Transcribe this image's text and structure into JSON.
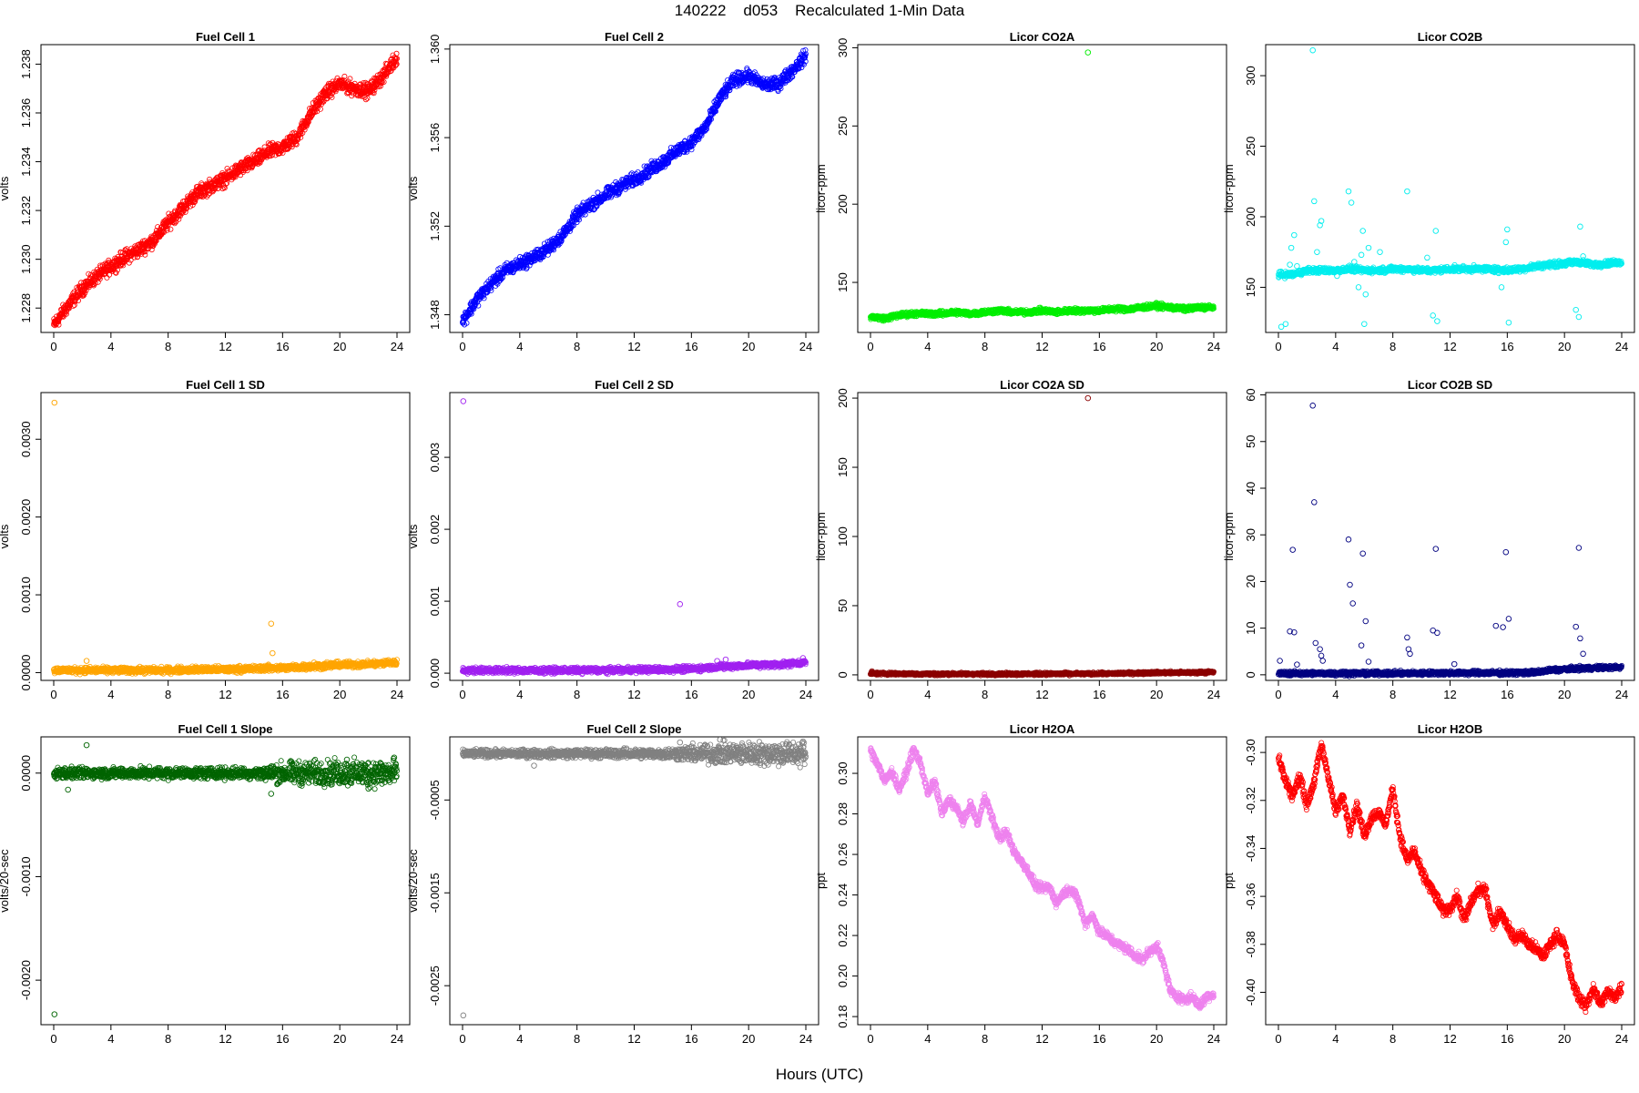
{
  "figure": {
    "title": "140222    d053    Recalculated 1-Min Data",
    "xlabel": "Hours (UTC)"
  },
  "chart_data": [
    {
      "type": "scatter",
      "title": "Fuel Cell 1",
      "ylabel": "volts",
      "color": "#ff0000",
      "xlim": [
        0,
        24
      ],
      "ylim": [
        1.227,
        1.2388
      ],
      "xticks": [
        0,
        4,
        8,
        12,
        16,
        20,
        24
      ],
      "yticks": [
        1.228,
        1.23,
        1.232,
        1.234,
        1.236,
        1.238
      ],
      "ytick_labels": [
        "1.228",
        "1.230",
        "1.232",
        "1.234",
        "1.236",
        "1.238"
      ],
      "x": [
        0,
        1,
        2,
        3,
        4,
        5,
        6,
        7,
        8,
        9,
        10,
        11,
        12,
        13,
        14,
        15,
        16,
        17,
        18,
        19,
        20,
        21,
        22,
        23,
        24
      ],
      "values": [
        1.2273,
        1.2281,
        1.2288,
        1.2293,
        1.2297,
        1.2301,
        1.2304,
        1.2308,
        1.2315,
        1.2321,
        1.2327,
        1.233,
        1.2333,
        1.2337,
        1.234,
        1.2344,
        1.2346,
        1.235,
        1.236,
        1.2368,
        1.2372,
        1.237,
        1.2369,
        1.2375,
        1.2383
      ],
      "band": 0.00022,
      "outliers": []
    },
    {
      "type": "scatter",
      "title": "Fuel Cell 2",
      "ylabel": "volts",
      "color": "#0000ff",
      "xlim": [
        0,
        24
      ],
      "ylim": [
        1.3472,
        1.3602
      ],
      "xticks": [
        0,
        4,
        8,
        12,
        16,
        20,
        24
      ],
      "yticks": [
        1.348,
        1.352,
        1.356,
        1.36
      ],
      "ytick_labels": [
        "1.348",
        "1.352",
        "1.356",
        "1.360"
      ],
      "x": [
        0,
        1,
        2,
        3,
        4,
        5,
        6,
        7,
        8,
        9,
        10,
        11,
        12,
        13,
        14,
        15,
        16,
        17,
        18,
        19,
        20,
        21,
        22,
        23,
        24
      ],
      "values": [
        1.3477,
        1.3487,
        1.3494,
        1.35,
        1.3503,
        1.3506,
        1.351,
        1.3516,
        1.3525,
        1.353,
        1.3534,
        1.3538,
        1.3541,
        1.3545,
        1.3549,
        1.3554,
        1.3558,
        1.3565,
        1.3578,
        1.3586,
        1.3588,
        1.3584,
        1.3584,
        1.359,
        1.3597
      ],
      "band": 0.00022,
      "outliers": []
    },
    {
      "type": "scatter",
      "title": "Licor CO2A",
      "ylabel": "licor-ppm",
      "color": "#00ee00",
      "xlim": [
        0,
        24
      ],
      "ylim": [
        118,
        302
      ],
      "xticks": [
        0,
        4,
        8,
        12,
        16,
        20,
        24
      ],
      "yticks": [
        150,
        200,
        250,
        300
      ],
      "ytick_labels": [
        "150",
        "200",
        "250",
        "300"
      ],
      "x": [
        0,
        1,
        2,
        3,
        4,
        5,
        6,
        7,
        8,
        9,
        10,
        11,
        12,
        13,
        14,
        15,
        16,
        17,
        18,
        19,
        20,
        21,
        22,
        23,
        24
      ],
      "values": [
        128,
        127,
        129,
        130,
        130,
        130,
        131,
        130,
        131,
        132,
        131,
        131,
        132,
        131,
        132,
        132,
        132,
        133,
        133,
        134,
        135,
        134,
        133,
        134,
        134
      ],
      "band": 1.2,
      "outliers": [
        [
          15.2,
          297
        ]
      ]
    },
    {
      "type": "scatter",
      "title": "Licor CO2B",
      "ylabel": "licor-ppm",
      "color": "#00eeee",
      "xlim": [
        0,
        24
      ],
      "ylim": [
        118,
        322
      ],
      "xticks": [
        0,
        4,
        8,
        12,
        16,
        20,
        24
      ],
      "yticks": [
        150,
        200,
        250,
        300
      ],
      "ytick_labels": [
        "150",
        "200",
        "250",
        "300"
      ],
      "x": [
        0,
        1,
        2,
        3,
        4,
        5,
        6,
        7,
        8,
        9,
        10,
        11,
        12,
        13,
        14,
        15,
        16,
        17,
        18,
        19,
        20,
        21,
        22,
        23,
        24
      ],
      "values": [
        159,
        159,
        162,
        162,
        162,
        163,
        162,
        162,
        163,
        163,
        162,
        162,
        163,
        163,
        163,
        163,
        162,
        163,
        165,
        166,
        167,
        168,
        166,
        167,
        168
      ],
      "band": 1.5,
      "outliers": [
        [
          0.2,
          122
        ],
        [
          0.5,
          124
        ],
        [
          0.8,
          166
        ],
        [
          0.9,
          178
        ],
        [
          1.1,
          187
        ],
        [
          1.3,
          165
        ],
        [
          2.4,
          318
        ],
        [
          2.5,
          211
        ],
        [
          2.7,
          175
        ],
        [
          2.9,
          194
        ],
        [
          3.0,
          197
        ],
        [
          4.1,
          158
        ],
        [
          4.9,
          218
        ],
        [
          5.1,
          210
        ],
        [
          5.3,
          168
        ],
        [
          5.6,
          150
        ],
        [
          5.8,
          173
        ],
        [
          5.9,
          190
        ],
        [
          6.0,
          124
        ],
        [
          6.1,
          145
        ],
        [
          6.3,
          178
        ],
        [
          7.1,
          175
        ],
        [
          9.0,
          218
        ],
        [
          10.4,
          171
        ],
        [
          10.8,
          130
        ],
        [
          11.0,
          190
        ],
        [
          11.1,
          126
        ],
        [
          15.4,
          160
        ],
        [
          15.6,
          150
        ],
        [
          15.9,
          182
        ],
        [
          16.0,
          191
        ],
        [
          16.1,
          125
        ],
        [
          20.8,
          134
        ],
        [
          21.0,
          129
        ],
        [
          21.1,
          193
        ],
        [
          21.3,
          172
        ]
      ]
    },
    {
      "type": "scatter",
      "title": "Fuel Cell 1 SD",
      "ylabel": "volts",
      "color": "#ffa500",
      "xlim": [
        0,
        24
      ],
      "ylim": [
        -0.0001,
        0.0036
      ],
      "xticks": [
        0,
        4,
        8,
        12,
        16,
        20,
        24
      ],
      "yticks": [
        0,
        0.001,
        0.002,
        0.003
      ],
      "ytick_labels": [
        "0.0000",
        "0.0010",
        "0.0020",
        "0.0030"
      ],
      "x": [
        0,
        2,
        4,
        6,
        8,
        10,
        12,
        14,
        15,
        16,
        18,
        20,
        22,
        24
      ],
      "values": [
        3e-05,
        3e-05,
        3e-05,
        3e-05,
        3e-05,
        4e-05,
        4e-05,
        5e-05,
        6e-05,
        6e-05,
        8e-05,
        0.0001,
        0.00011,
        0.00013
      ],
      "band": 3e-05,
      "outliers": [
        [
          0.05,
          0.00347
        ],
        [
          15.2,
          0.00063
        ],
        [
          15.3,
          0.00025
        ],
        [
          2.3,
          0.00015
        ],
        [
          18.2,
          0.00013
        ],
        [
          23.4,
          0.00016
        ]
      ]
    },
    {
      "type": "scatter",
      "title": "Fuel Cell 2 SD",
      "ylabel": "volts",
      "color": "#a020f0",
      "xlim": [
        0,
        24
      ],
      "ylim": [
        -0.0001,
        0.0039
      ],
      "xticks": [
        0,
        4,
        8,
        12,
        16,
        20,
        24
      ],
      "yticks": [
        0,
        0.001,
        0.002,
        0.003
      ],
      "ytick_labels": [
        "0.000",
        "0.001",
        "0.002",
        "0.003"
      ],
      "x": [
        0,
        2,
        4,
        6,
        8,
        10,
        12,
        14,
        16,
        18,
        20,
        22,
        24
      ],
      "values": [
        4e-05,
        4e-05,
        4e-05,
        4e-05,
        4e-05,
        4e-05,
        5e-05,
        5e-05,
        6e-05,
        9e-05,
        0.00011,
        0.00012,
        0.00015
      ],
      "band": 3e-05,
      "outliers": [
        [
          0.05,
          0.00378
        ],
        [
          15.2,
          0.00096
        ],
        [
          17.8,
          0.00017
        ],
        [
          18.4,
          0.00019
        ],
        [
          23.8,
          0.00021
        ]
      ]
    },
    {
      "type": "scatter",
      "title": "Licor CO2A SD",
      "ylabel": "licor-ppm",
      "color": "#8b0000",
      "xlim": [
        0,
        24
      ],
      "ylim": [
        -4,
        204
      ],
      "xticks": [
        0,
        4,
        8,
        12,
        16,
        20,
        24
      ],
      "yticks": [
        0,
        50,
        100,
        150,
        200
      ],
      "ytick_labels": [
        "0",
        "50",
        "100",
        "150",
        "200"
      ],
      "x": [
        0,
        4,
        8,
        12,
        16,
        18,
        20,
        22,
        24
      ],
      "values": [
        1,
        0.6,
        0.6,
        0.7,
        0.8,
        1.2,
        1.6,
        1.6,
        2
      ],
      "band": 0.7,
      "outliers": [
        [
          15.2,
          200
        ],
        [
          0.1,
          2.6
        ]
      ]
    },
    {
      "type": "scatter",
      "title": "Licor CO2B SD",
      "ylabel": "licor-ppm",
      "color": "#000080",
      "xlim": [
        0,
        24
      ],
      "ylim": [
        -1.2,
        60.5
      ],
      "xticks": [
        0,
        4,
        8,
        12,
        16,
        20,
        24
      ],
      "yticks": [
        0,
        10,
        20,
        30,
        40,
        50,
        60
      ],
      "ytick_labels": [
        "0",
        "10",
        "20",
        "30",
        "40",
        "50",
        "60"
      ],
      "x": [
        0,
        4,
        8,
        12,
        16,
        18,
        19,
        20,
        22,
        24
      ],
      "values": [
        0.3,
        0.3,
        0.3,
        0.4,
        0.4,
        0.5,
        1.0,
        1.2,
        1.5,
        1.6
      ],
      "band": 0.35,
      "outliers": [
        [
          0.1,
          3
        ],
        [
          0.8,
          9.3
        ],
        [
          1.0,
          26.8
        ],
        [
          1.1,
          9.1
        ],
        [
          1.3,
          2.2
        ],
        [
          2.4,
          57.7
        ],
        [
          2.5,
          37
        ],
        [
          2.6,
          6.8
        ],
        [
          2.9,
          5.5
        ],
        [
          3.0,
          4.1
        ],
        [
          3.1,
          3
        ],
        [
          4.9,
          29
        ],
        [
          5.0,
          19.3
        ],
        [
          5.2,
          15.3
        ],
        [
          5.8,
          6.3
        ],
        [
          5.9,
          26
        ],
        [
          6.1,
          11.5
        ],
        [
          6.3,
          2.8
        ],
        [
          9.0,
          8
        ],
        [
          9.1,
          5.5
        ],
        [
          9.2,
          4.5
        ],
        [
          10.8,
          9.5
        ],
        [
          11.0,
          27
        ],
        [
          11.1,
          9
        ],
        [
          12.3,
          2.3
        ],
        [
          15.2,
          10.5
        ],
        [
          15.7,
          10.2
        ],
        [
          15.9,
          26.3
        ],
        [
          16.1,
          12
        ],
        [
          20.8,
          10.3
        ],
        [
          21.0,
          27.2
        ],
        [
          21.1,
          7.8
        ],
        [
          21.3,
          4.5
        ]
      ]
    },
    {
      "type": "scatter",
      "title": "Fuel Cell 1 Slope",
      "ylabel": "volts/20-sec",
      "color": "#006400",
      "xlim": [
        0,
        24
      ],
      "ylim": [
        -0.00243,
        0.00035
      ],
      "xticks": [
        0,
        4,
        8,
        12,
        16,
        20,
        24
      ],
      "yticks": [
        0,
        -0.001,
        -0.002
      ],
      "ytick_labels": [
        "0.0000",
        "-0.0010",
        "-0.0020"
      ],
      "x": [
        0,
        4,
        8,
        12,
        16,
        20,
        24
      ],
      "values": [
        0,
        0,
        0,
        0,
        0,
        0,
        0
      ],
      "band": 4e-05,
      "band_by_x": [
        [
          0,
          4e-05
        ],
        [
          14,
          4e-05
        ],
        [
          16,
          8e-05
        ],
        [
          24,
          0.0001
        ]
      ],
      "outliers": [
        [
          0.05,
          -0.00233
        ],
        [
          2.3,
          0.00027
        ],
        [
          1.0,
          -0.00016
        ],
        [
          15.2,
          -0.0002
        ],
        [
          20.5,
          0.00013
        ],
        [
          22,
          -0.00015
        ],
        [
          23.8,
          0.00015
        ]
      ]
    },
    {
      "type": "scatter",
      "title": "Fuel Cell 2 Slope",
      "ylabel": "volts/20-sec",
      "color": "#808080",
      "xlim": [
        0,
        24
      ],
      "ylim": [
        -0.00292,
        0.00018
      ],
      "xticks": [
        0,
        4,
        8,
        12,
        16,
        20,
        24
      ],
      "yticks": [
        -0.0005,
        -0.0015,
        -0.0025
      ],
      "ytick_labels": [
        "-0.0005",
        "-0.0015",
        "-0.0025"
      ],
      "x": [
        0,
        4,
        8,
        12,
        16,
        20,
        24
      ],
      "values": [
        0,
        0,
        0,
        0,
        0,
        0,
        0
      ],
      "band": 3e-05,
      "band_by_x": [
        [
          0,
          3e-05
        ],
        [
          14,
          4e-05
        ],
        [
          17,
          8e-05
        ],
        [
          24,
          0.0001
        ]
      ],
      "outliers": [
        [
          0.05,
          -0.00282
        ],
        [
          15.2,
          0.00012
        ],
        [
          18,
          0.00015
        ],
        [
          23.8,
          0.00013
        ],
        [
          5,
          -0.00013
        ]
      ]
    },
    {
      "type": "scatter",
      "title": "Licor H2OA",
      "ylabel": "ppt",
      "color": "#ee82ee",
      "xlim": [
        0,
        24
      ],
      "ylim": [
        0.176,
        0.318
      ],
      "xticks": [
        0,
        4,
        8,
        12,
        16,
        20,
        24
      ],
      "yticks": [
        0.18,
        0.2,
        0.22,
        0.24,
        0.26,
        0.28,
        0.3
      ],
      "ytick_labels": [
        "0.18",
        "0.20",
        "0.22",
        "0.24",
        "0.26",
        "0.28",
        "0.30"
      ],
      "x": [
        0,
        0.5,
        1,
        1.5,
        2,
        2.5,
        3,
        3.5,
        4,
        4.5,
        5,
        5.5,
        6,
        6.5,
        7,
        7.5,
        8,
        8.5,
        9,
        9.5,
        10,
        10.5,
        11,
        11.5,
        12,
        12.5,
        13,
        13.5,
        14,
        14.5,
        15,
        15.5,
        16,
        16.5,
        17,
        17.5,
        18,
        18.5,
        19,
        19.5,
        20,
        20.5,
        21,
        21.5,
        22,
        22.5,
        23,
        23.5,
        24
      ],
      "values": [
        0.311,
        0.305,
        0.296,
        0.301,
        0.292,
        0.3,
        0.312,
        0.305,
        0.29,
        0.296,
        0.28,
        0.287,
        0.283,
        0.276,
        0.285,
        0.275,
        0.289,
        0.278,
        0.268,
        0.271,
        0.262,
        0.257,
        0.252,
        0.245,
        0.243,
        0.244,
        0.236,
        0.241,
        0.243,
        0.238,
        0.226,
        0.23,
        0.222,
        0.22,
        0.217,
        0.215,
        0.213,
        0.21,
        0.208,
        0.212,
        0.215,
        0.206,
        0.192,
        0.19,
        0.188,
        0.19,
        0.185,
        0.19,
        0.191
      ],
      "band": 0.0017,
      "outliers": []
    },
    {
      "type": "scatter",
      "title": "Licor H2OB",
      "ylabel": "ppt",
      "color": "#ff0000",
      "xlim": [
        0,
        24
      ],
      "ylim": [
        -0.4135,
        -0.2935
      ],
      "xticks": [
        0,
        4,
        8,
        12,
        16,
        20,
        24
      ],
      "yticks": [
        -0.4,
        -0.38,
        -0.36,
        -0.34,
        -0.32,
        -0.3
      ],
      "ytick_labels": [
        "-0.40",
        "-0.38",
        "-0.36",
        "-0.34",
        "-0.32",
        "-0.30"
      ],
      "x": [
        0,
        0.5,
        1,
        1.5,
        2,
        2.5,
        3,
        3.5,
        4,
        4.5,
        5,
        5.5,
        6,
        6.5,
        7,
        7.5,
        8,
        8.5,
        9,
        9.5,
        10,
        10.5,
        11,
        11.5,
        12,
        12.5,
        13,
        13.5,
        14,
        14.5,
        15,
        15.5,
        16,
        16.5,
        17,
        17.5,
        18,
        18.5,
        19,
        19.5,
        20,
        20.5,
        21,
        21.5,
        22,
        22.5,
        23,
        23.5,
        24
      ],
      "values": [
        -0.302,
        -0.312,
        -0.318,
        -0.31,
        -0.322,
        -0.312,
        -0.297,
        -0.31,
        -0.325,
        -0.318,
        -0.332,
        -0.322,
        -0.335,
        -0.327,
        -0.325,
        -0.33,
        -0.315,
        -0.335,
        -0.345,
        -0.341,
        -0.35,
        -0.355,
        -0.36,
        -0.366,
        -0.365,
        -0.36,
        -0.37,
        -0.362,
        -0.357,
        -0.358,
        -0.372,
        -0.366,
        -0.372,
        -0.378,
        -0.376,
        -0.38,
        -0.382,
        -0.385,
        -0.38,
        -0.376,
        -0.38,
        -0.395,
        -0.402,
        -0.406,
        -0.398,
        -0.405,
        -0.4,
        -0.402,
        -0.398
      ],
      "band": 0.0018,
      "outliers": []
    }
  ]
}
